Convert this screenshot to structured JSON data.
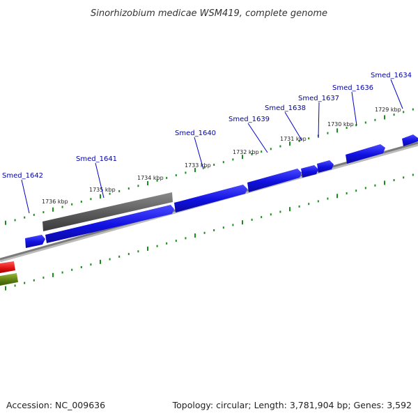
{
  "title": "Sinorhizobium medicae WSM419, complete genome",
  "accession": "Accession: NC_009636",
  "summary": "Topology: circular; Length: 3,781,904 bp; Genes: 3,592",
  "colors": {
    "cds": "#1f1fe0",
    "pseudo": "#5a5a5a",
    "backbone": "#8a8a8a",
    "ticks": "#1a8c1a",
    "rna": "#e01a1a",
    "other": "#6a8a1a",
    "label": "#0000aa"
  },
  "ticks": [
    "1729 kbp",
    "1730 kbp",
    "1731 kbp",
    "1732 kbp",
    "1733 kbp",
    "1734 kbp",
    "1735 kbp",
    "1736 kbp"
  ],
  "genes": [
    "Smed_1634",
    "Smed_1636",
    "Smed_1637",
    "Smed_1638",
    "Smed_1639",
    "Smed_1640",
    "Smed_1641",
    "Smed_1642"
  ]
}
